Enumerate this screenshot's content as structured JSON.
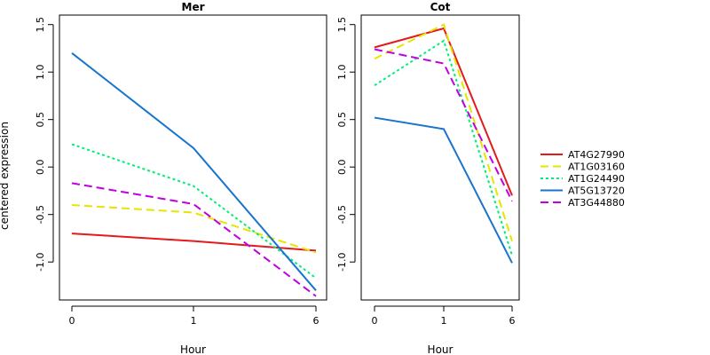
{
  "chart_data": {
    "type": "line",
    "ylabel": "centered expression",
    "legend_position": "right",
    "series_styles": [
      {
        "name": "AT4G27990",
        "color": "#e31a1c",
        "dash": "solid"
      },
      {
        "name": "AT1G03160",
        "color": "#e5e500",
        "dash": "dashed"
      },
      {
        "name": "AT1G24490",
        "color": "#00ee76",
        "dash": "dotted"
      },
      {
        "name": "AT5G13720",
        "color": "#1874cd",
        "dash": "solid"
      },
      {
        "name": "AT3G44880",
        "color": "#c000e0",
        "dash": "dashed"
      }
    ],
    "panels": [
      {
        "title": "Mer",
        "xlabel": "Hour",
        "categories": [
          "0",
          "1",
          "6"
        ],
        "ylim": [
          -1.4,
          1.6
        ],
        "yticks": [
          -1.0,
          -0.5,
          0.0,
          0.5,
          1.0,
          1.5
        ],
        "ytick_labels": [
          "-1.0",
          "-0.5",
          "0.0",
          "0.5",
          "1.0",
          "1.5"
        ],
        "series": [
          {
            "name": "AT4G27990",
            "values": [
              -0.7,
              -0.78,
              -0.88
            ]
          },
          {
            "name": "AT1G03160",
            "values": [
              -0.4,
              -0.48,
              -0.9
            ]
          },
          {
            "name": "AT1G24490",
            "values": [
              0.24,
              -0.2,
              -1.17
            ]
          },
          {
            "name": "AT5G13720",
            "values": [
              1.2,
              0.2,
              -1.3
            ]
          },
          {
            "name": "AT3G44880",
            "values": [
              -0.17,
              -0.39,
              -1.36
            ]
          }
        ]
      },
      {
        "title": "Cot",
        "xlabel": "Hour",
        "categories": [
          "0",
          "1",
          "6"
        ],
        "ylim": [
          -1.4,
          1.6
        ],
        "yticks": [
          -1.0,
          -0.5,
          0.0,
          0.5,
          1.0,
          1.5
        ],
        "ytick_labels": [
          "-1.0",
          "-0.5",
          "0.0",
          "0.5",
          "1.0",
          "1.5"
        ],
        "series": [
          {
            "name": "AT4G27990",
            "values": [
              1.26,
              1.46,
              -0.3
            ]
          },
          {
            "name": "AT1G03160",
            "values": [
              1.14,
              1.5,
              -0.78
            ]
          },
          {
            "name": "AT1G24490",
            "values": [
              0.86,
              1.33,
              -0.93
            ]
          },
          {
            "name": "AT5G13720",
            "values": [
              0.52,
              0.4,
              -1.01
            ]
          },
          {
            "name": "AT3G44880",
            "values": [
              1.24,
              1.09,
              -0.36
            ]
          }
        ]
      }
    ]
  }
}
